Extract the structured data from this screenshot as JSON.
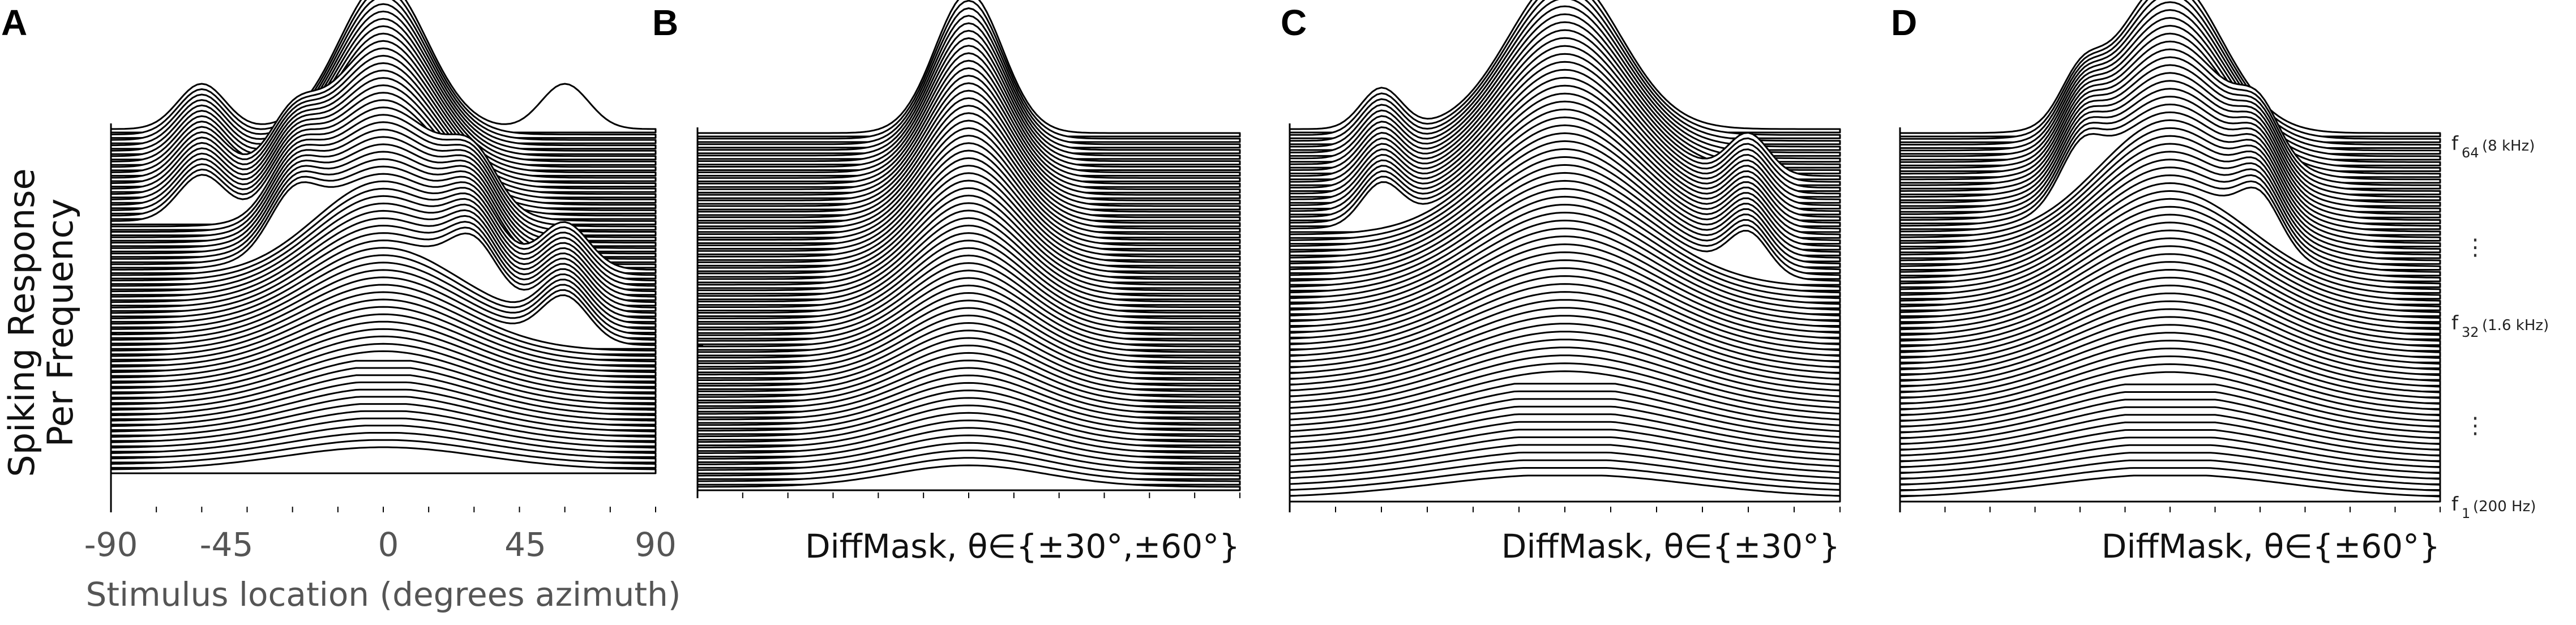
{
  "figure": {
    "ylabel_line1": "Spiking Response",
    "ylabel_line2": "Per Frequency",
    "xlabel": "Stimulus location (degrees azimuth)",
    "frequency_labels": {
      "top_main": "f",
      "top_sub": "64",
      "top_note": "(8 kHz)",
      "mid_main": "f",
      "mid_sub": "32",
      "mid_note": "(1.6 kHz)",
      "bottom_main": "f",
      "bottom_sub": "1",
      "bottom_note": "(200 Hz)",
      "ellipsis": "⋮"
    }
  },
  "chart_data": [
    {
      "type": "line",
      "panel": "A",
      "caption": "",
      "xlim": [
        -90,
        90
      ],
      "xticks": [
        -90,
        -45,
        0,
        45,
        90
      ],
      "xtick_labels": [
        "-90",
        "-45",
        "0",
        "45",
        "90"
      ],
      "channels": 64,
      "stacked_ridgeline": true,
      "main_peak_azimuth": 0,
      "side_peak_azimuths": [
        -60,
        -30,
        30,
        60
      ],
      "sidelobes_present": true
    },
    {
      "type": "line",
      "panel": "B",
      "caption": "DiffMask, θ∈{±30°,±60°}",
      "xlim": [
        -90,
        90
      ],
      "channels": 64,
      "stacked_ridgeline": true,
      "main_peak_azimuth": 0,
      "sidelobes_present": false
    },
    {
      "type": "line",
      "panel": "C",
      "caption": "DiffMask, θ∈{±30°}",
      "xlim": [
        -90,
        90
      ],
      "channels": 64,
      "stacked_ridgeline": true,
      "main_peak_azimuth": 0,
      "side_peak_azimuths": [
        -60,
        60
      ],
      "sidelobes_present": true
    },
    {
      "type": "line",
      "panel": "D",
      "caption": "DiffMask, θ∈{±60°}",
      "xlim": [
        -90,
        90
      ],
      "channels": 64,
      "stacked_ridgeline": true,
      "main_peak_azimuth": 0,
      "side_peak_azimuths": [
        -30,
        30
      ],
      "sidelobes_present": true
    }
  ]
}
